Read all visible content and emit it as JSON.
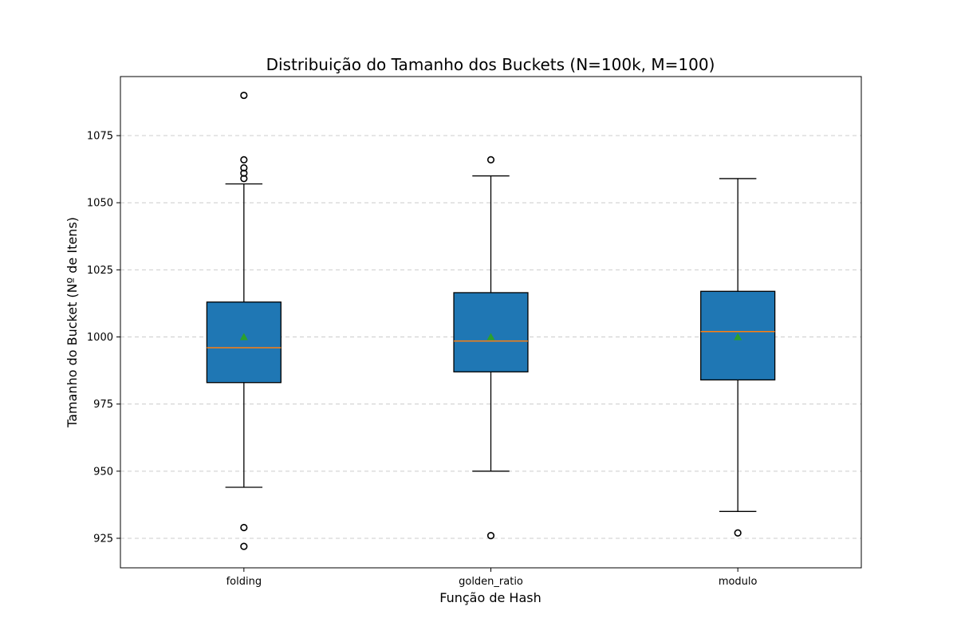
{
  "chart_data": {
    "type": "box",
    "title": "Distribuição do Tamanho dos Buckets (N=100k, M=100)",
    "xlabel": "Função de Hash",
    "ylabel": "Tamanho do Bucket (Nº de Itens)",
    "ylim": [
      914,
      1097
    ],
    "yticks": [
      925,
      950,
      975,
      1000,
      1025,
      1050,
      1075
    ],
    "grid": "y, dashed",
    "categories": [
      "folding",
      "golden_ratio",
      "modulo"
    ],
    "boxes": [
      {
        "category": "folding",
        "whisker_low": 944,
        "q1": 983,
        "median": 996,
        "q3": 1013,
        "whisker_high": 1057,
        "mean": 1000,
        "fliers": [
          922,
          929,
          1059,
          1061,
          1063,
          1066,
          1090
        ]
      },
      {
        "category": "golden_ratio",
        "whisker_low": 950,
        "q1": 987,
        "median": 998.5,
        "q3": 1016.5,
        "whisker_high": 1060,
        "mean": 1000,
        "fliers": [
          926,
          1066
        ]
      },
      {
        "category": "modulo",
        "whisker_low": 935,
        "q1": 984,
        "median": 1002,
        "q3": 1017,
        "whisker_high": 1059,
        "mean": 1000,
        "fliers": [
          927
        ]
      }
    ],
    "colors": {
      "box_fill": "#1f77b4",
      "median": "#ff7f0e",
      "mean_marker": "#2ca02c",
      "grid": "#cccccc"
    }
  }
}
